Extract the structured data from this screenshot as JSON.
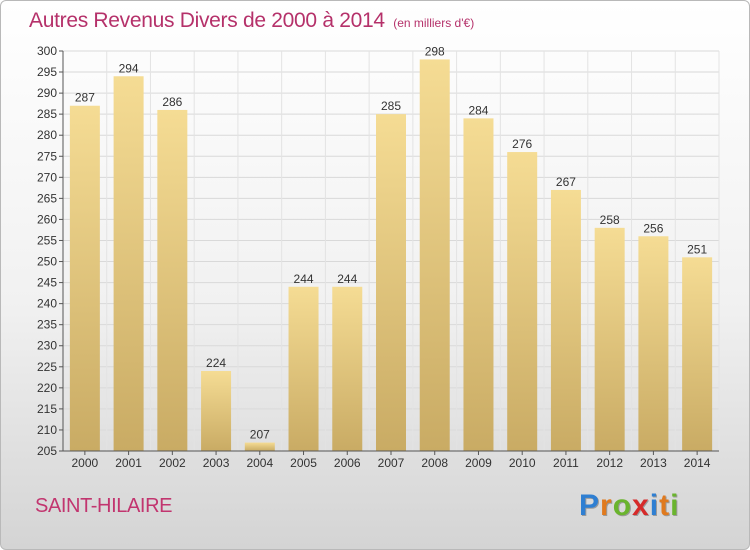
{
  "title": "Autres Revenus Divers de 2000 à 2014",
  "unit_note": "(en milliers d'€)",
  "city": "SAINT-HILAIRE",
  "logo": {
    "letters": [
      "P",
      "r",
      "o",
      "x",
      "i",
      "t",
      "i"
    ],
    "colors": [
      "#2f7fd2",
      "#e07a1e",
      "#6ab42e",
      "#d62a2a",
      "#2f7fd2",
      "#e07a1e",
      "#6ab42e"
    ]
  },
  "colors": {
    "bar_top": "#f5dc94",
    "bar_bottom": "#c9ab64",
    "title": "#b5316a"
  },
  "chart_data": {
    "type": "bar",
    "categories": [
      "2000",
      "2001",
      "2002",
      "2003",
      "2004",
      "2005",
      "2006",
      "2007",
      "2008",
      "2009",
      "2010",
      "2011",
      "2012",
      "2013",
      "2014"
    ],
    "values": [
      287,
      294,
      286,
      224,
      207,
      244,
      244,
      285,
      298,
      284,
      276,
      267,
      258,
      256,
      251
    ],
    "ylim": [
      205,
      300
    ],
    "yticks": [
      205,
      210,
      215,
      220,
      225,
      230,
      235,
      240,
      245,
      250,
      255,
      260,
      265,
      270,
      275,
      280,
      285,
      290,
      295,
      300
    ],
    "grid": true,
    "data_labels": true
  }
}
